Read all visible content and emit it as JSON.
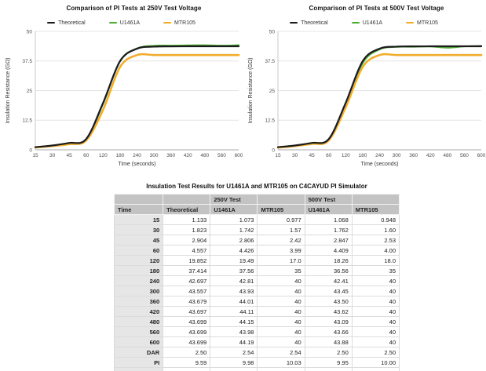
{
  "colors": {
    "theoretical": "#1c1c1c",
    "u1461a": "#4caf34",
    "mtr105": "#f0ad2d",
    "gridline": "#e4e4e4",
    "axis_line": "#a9a9a9",
    "y_axis_line": "#c9c9c9",
    "header_bg": "#c3c3c3",
    "time_col_bg": "#e6e6e6"
  },
  "chart_data": [
    {
      "type": "line",
      "title": "Comparison of PI Tests at 250V Test Voltage",
      "xlabel": "Time (seconds)",
      "ylabel": "Insulation Resistance (GΩ)",
      "categories": [
        "15",
        "30",
        "45",
        "60",
        "120",
        "180",
        "240",
        "300",
        "360",
        "420",
        "480",
        "560",
        "600"
      ],
      "ylim": [
        0,
        50
      ],
      "yticks": [
        0,
        12.5,
        25,
        37.5,
        50
      ],
      "grid": true,
      "legend_position": "top",
      "series": [
        {
          "name": "Theoretical",
          "color": "#1c1c1c",
          "width": 2.2,
          "values": [
            1.133,
            1.823,
            2.904,
            4.557,
            19.852,
            37.414,
            42.697,
            43.557,
            43.679,
            43.697,
            43.699,
            43.699,
            43.699
          ]
        },
        {
          "name": "U1461A",
          "color": "#4caf34",
          "width": 2.0,
          "values": [
            1.073,
            1.742,
            2.806,
            4.426,
            19.49,
            37.56,
            42.81,
            43.93,
            44.01,
            44.11,
            44.15,
            43.98,
            44.19
          ]
        },
        {
          "name": "MTR105",
          "color": "#f0ad2d",
          "width": 2.6,
          "values": [
            0.977,
            1.57,
            2.42,
            3.99,
            17.0,
            35,
            40,
            40,
            40,
            40,
            40,
            40,
            40
          ]
        }
      ]
    },
    {
      "type": "line",
      "title": "Comparison of PI Tests at 500V Test Voltage",
      "xlabel": "Time (seconds)",
      "ylabel": "Insulation Resistance (GΩ)",
      "categories": [
        "15",
        "30",
        "45",
        "60",
        "120",
        "180",
        "240",
        "300",
        "360",
        "420",
        "480",
        "560",
        "600"
      ],
      "ylim": [
        0,
        50
      ],
      "yticks": [
        0,
        12.5,
        25,
        37.5,
        50
      ],
      "grid": true,
      "legend_position": "top",
      "series": [
        {
          "name": "Theoretical",
          "color": "#1c1c1c",
          "width": 2.2,
          "values": [
            1.133,
            1.823,
            2.904,
            4.557,
            19.852,
            37.414,
            42.697,
            43.557,
            43.679,
            43.697,
            43.699,
            43.699,
            43.699
          ]
        },
        {
          "name": "U1461A",
          "color": "#4caf34",
          "width": 2.0,
          "values": [
            1.068,
            1.762,
            2.847,
            4.409,
            18.26,
            36.56,
            42.41,
            43.45,
            43.5,
            43.62,
            43.09,
            43.66,
            43.88
          ]
        },
        {
          "name": "MTR105",
          "color": "#f0ad2d",
          "width": 2.6,
          "values": [
            0.948,
            1.6,
            2.53,
            4.0,
            18.0,
            35,
            40,
            40,
            40,
            40,
            40,
            40,
            40
          ]
        }
      ]
    }
  ],
  "table": {
    "title": "Insulation Test Results for U1461A and MTR105 on C4CAYUD PI Simulator",
    "group_headers": [
      "",
      "",
      "250V Test",
      "",
      "500V Test",
      ""
    ],
    "columns": [
      "Time",
      "Theoretical",
      "U1461A",
      "MTR105",
      "U1461A",
      "MTR105"
    ],
    "rows": [
      [
        "15",
        "1.133",
        "1.073",
        "0.977",
        "1.068",
        "0.948"
      ],
      [
        "30",
        "1.823",
        "1.742",
        "1.57",
        "1.762",
        "1.60"
      ],
      [
        "45",
        "2.904",
        "2.806",
        "2.42",
        "2.847",
        "2.53"
      ],
      [
        "60",
        "4.557",
        "4.426",
        "3.99",
        "4.409",
        "4.00"
      ],
      [
        "120",
        "19.852",
        "19.49",
        "17.0",
        "18.26",
        "18.0"
      ],
      [
        "180",
        "37.414",
        "37.56",
        "35",
        "36.56",
        "35"
      ],
      [
        "240",
        "42.697",
        "42.81",
        "40",
        "42.41",
        "40"
      ],
      [
        "300",
        "43.557",
        "43.93",
        "40",
        "43.45",
        "40"
      ],
      [
        "360",
        "43.679",
        "44.01",
        "40",
        "43.50",
        "40"
      ],
      [
        "420",
        "43.697",
        "44.11",
        "40",
        "43.62",
        "40"
      ],
      [
        "480",
        "43.699",
        "44.15",
        "40",
        "43.09",
        "40"
      ],
      [
        "560",
        "43.699",
        "43.98",
        "40",
        "43.66",
        "40"
      ],
      [
        "600",
        "43.699",
        "44.19",
        "40",
        "43.88",
        "40"
      ],
      [
        "DAR",
        "2.50",
        "2.54",
        "2.54",
        "2.50",
        "2.50"
      ],
      [
        "PI",
        "9.59",
        "9.98",
        "10.03",
        "9.95",
        "10.00"
      ]
    ],
    "has_trailing_empty_row": true
  }
}
